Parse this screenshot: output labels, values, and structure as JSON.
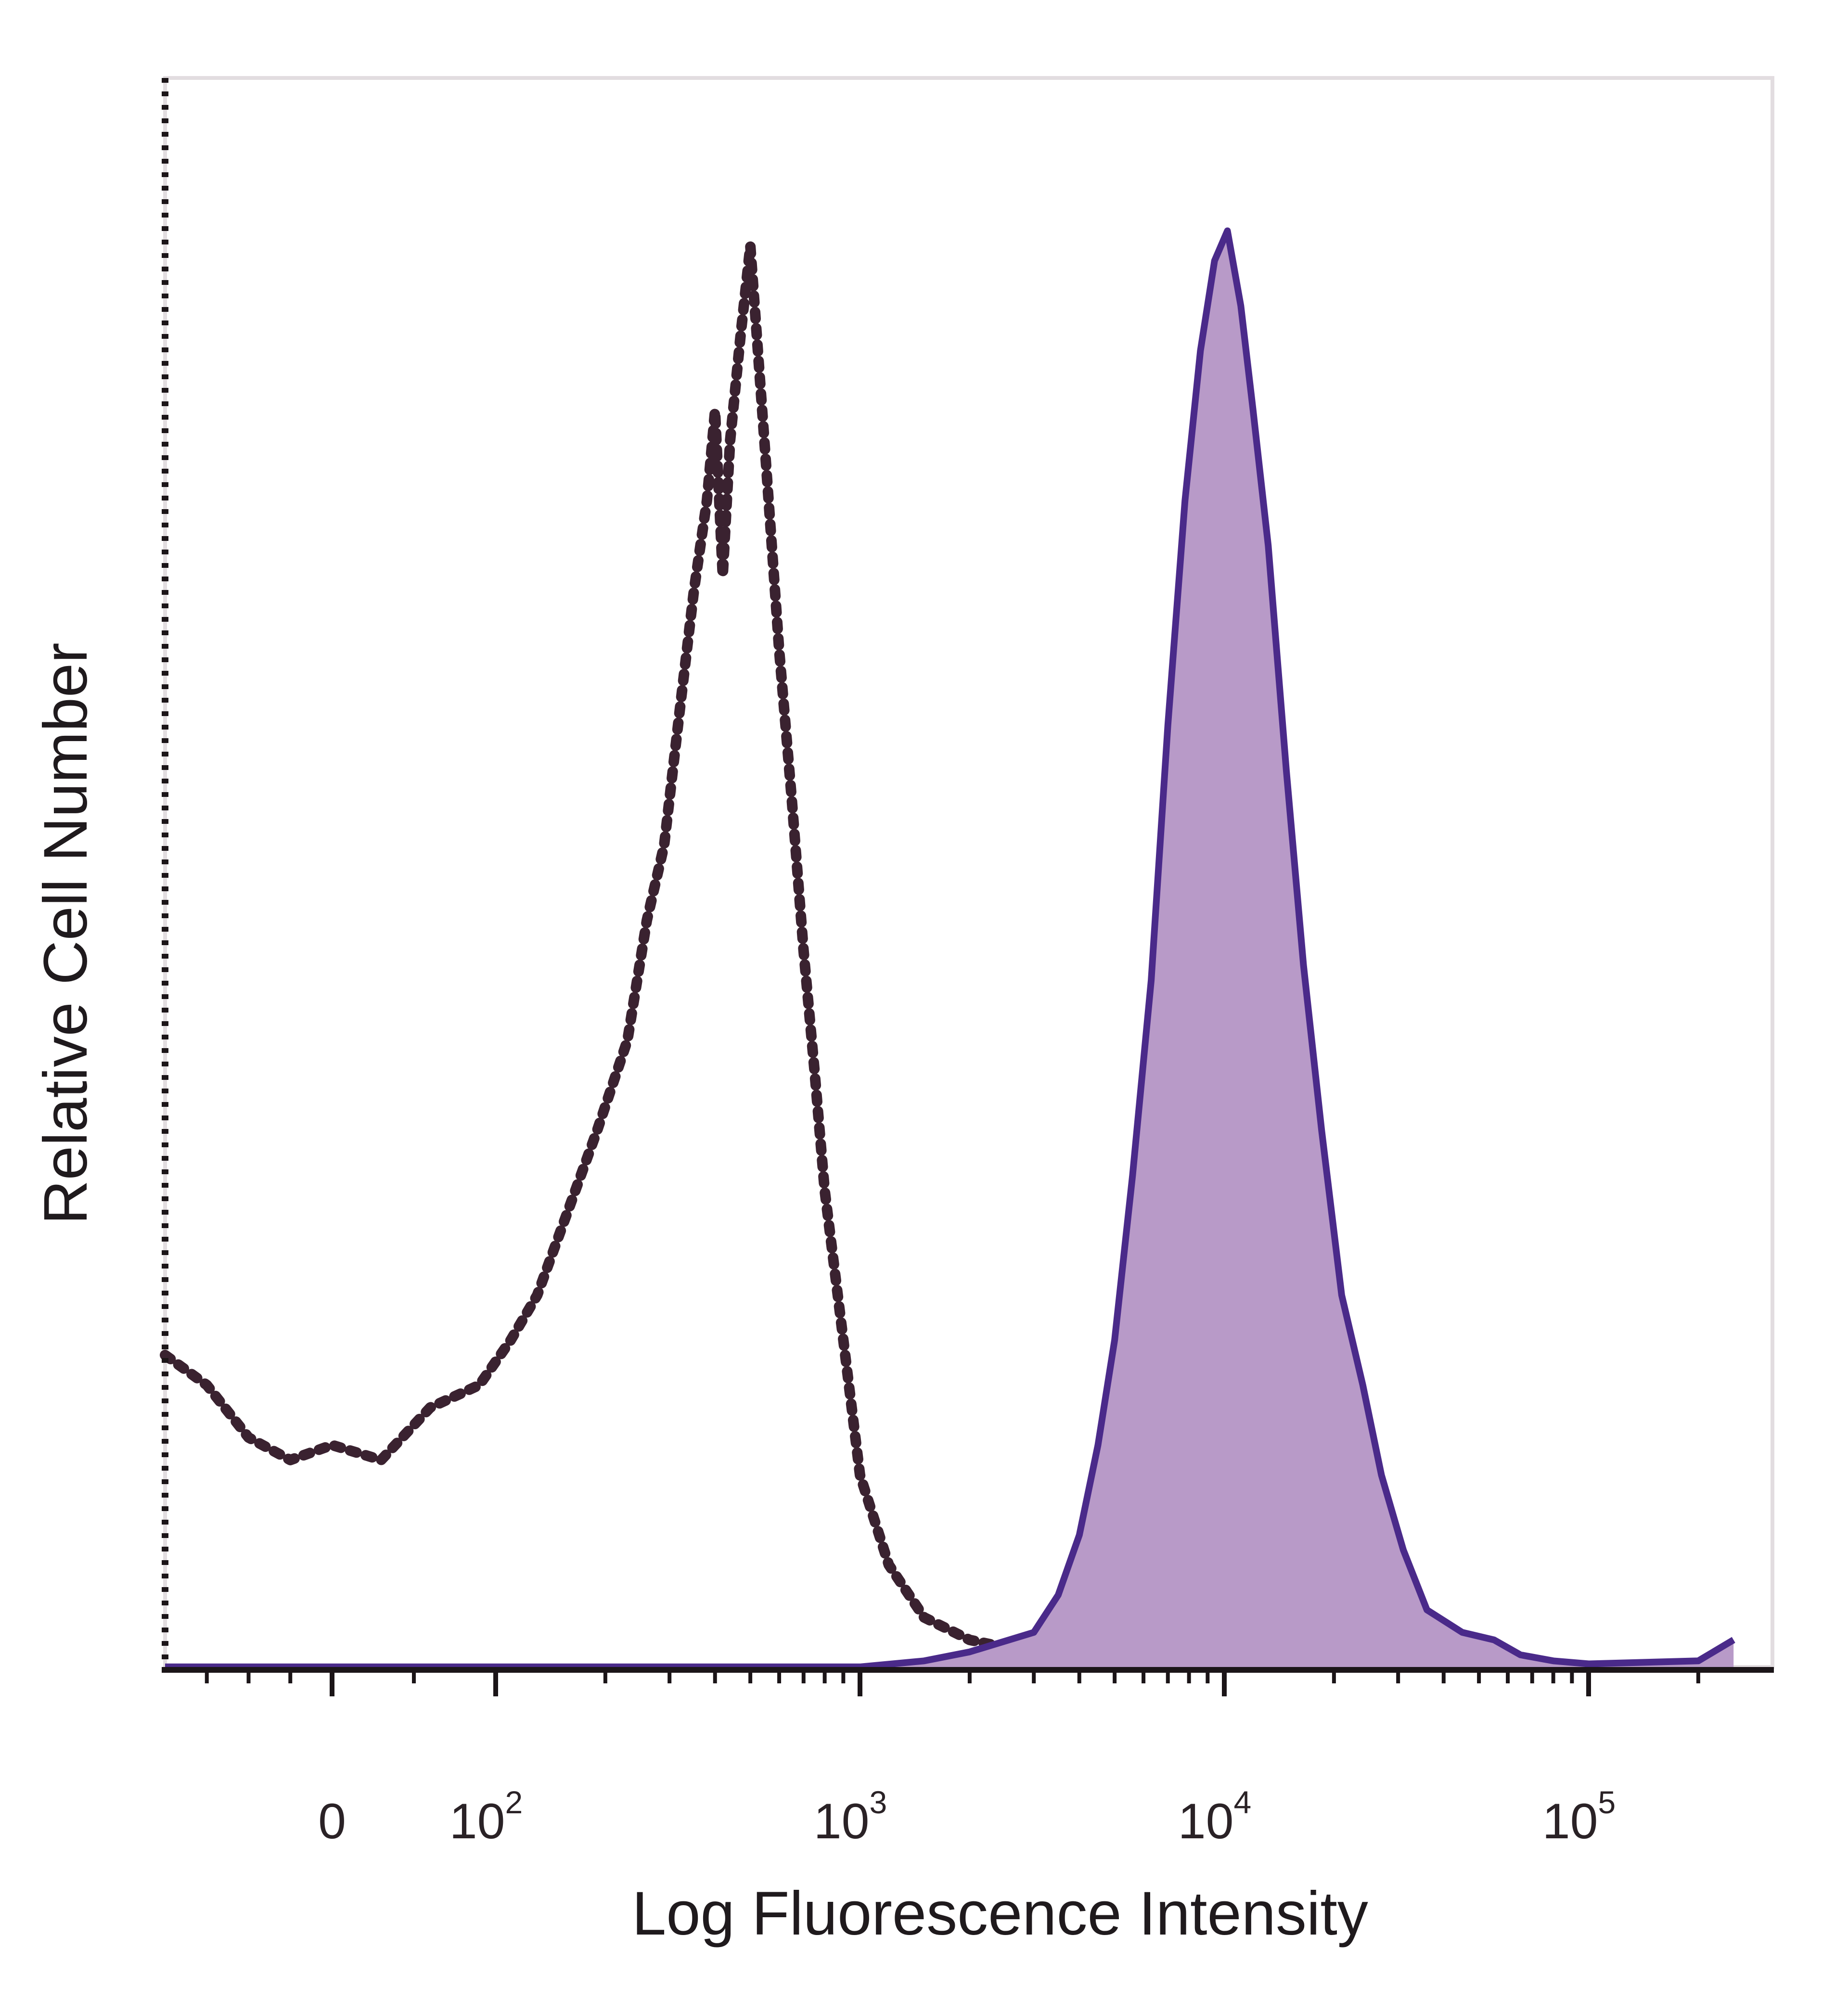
{
  "chart_data": {
    "type": "area",
    "title": "",
    "xlabel": "Log Fluorescence Intensity",
    "ylabel": "Relative Cell Number",
    "x_scale": "biexponential (log above 10^2, linear near 0)",
    "x_ticks": [
      {
        "value": 0,
        "base": "0",
        "exp": ""
      },
      {
        "value": 100,
        "base": "10",
        "exp": "2"
      },
      {
        "value": 1000,
        "base": "10",
        "exp": "3"
      },
      {
        "value": 10000,
        "base": "10",
        "exp": "4"
      },
      {
        "value": 100000,
        "base": "10",
        "exp": "5"
      }
    ],
    "xlim": [
      -400,
      250000
    ],
    "ylim": [
      0,
      100
    ],
    "grid": false,
    "series": [
      {
        "name": "",
        "style": "dotted",
        "color": "#3a2230",
        "fill": false,
        "points": [
          [
            -400,
            21
          ],
          [
            -300,
            19
          ],
          [
            -200,
            15.5
          ],
          [
            -100,
            14
          ],
          [
            0,
            15
          ],
          [
            30,
            14
          ],
          [
            60,
            17.5
          ],
          [
            90,
            19
          ],
          [
            110,
            22
          ],
          [
            130,
            25
          ],
          [
            160,
            31
          ],
          [
            190,
            36
          ],
          [
            230,
            42
          ],
          [
            260,
            50
          ],
          [
            290,
            55
          ],
          [
            320,
            64
          ],
          [
            350,
            72
          ],
          [
            380,
            78
          ],
          [
            400,
            84
          ],
          [
            420,
            73
          ],
          [
            440,
            82
          ],
          [
            470,
            89
          ],
          [
            500,
            95
          ],
          [
            550,
            81
          ],
          [
            600,
            68
          ],
          [
            650,
            58
          ],
          [
            700,
            48
          ],
          [
            750,
            40
          ],
          [
            800,
            32
          ],
          [
            900,
            22
          ],
          [
            1000,
            13
          ],
          [
            1200,
            7
          ],
          [
            1500,
            3.5
          ],
          [
            2000,
            2
          ],
          [
            2500,
            1.5
          ],
          [
            3000,
            1.3
          ],
          [
            4000,
            1
          ],
          [
            6000,
            0.5
          ],
          [
            10000,
            0.3
          ],
          [
            100000,
            0.2
          ],
          [
            250000,
            0.2
          ]
        ]
      },
      {
        "name": "",
        "style": "solid",
        "color": "#4a2a8a",
        "fill": true,
        "fill_color": "#b89ac8",
        "points": [
          [
            -400,
            0.2
          ],
          [
            1000,
            0.2
          ],
          [
            1500,
            0.6
          ],
          [
            2000,
            1.2
          ],
          [
            3000,
            2.5
          ],
          [
            3500,
            5
          ],
          [
            4000,
            9
          ],
          [
            4500,
            15
          ],
          [
            5000,
            22
          ],
          [
            5600,
            33
          ],
          [
            6300,
            46
          ],
          [
            7000,
            63
          ],
          [
            7800,
            78
          ],
          [
            8600,
            88
          ],
          [
            9400,
            94
          ],
          [
            10200,
            96
          ],
          [
            11100,
            91
          ],
          [
            12000,
            84
          ],
          [
            13200,
            75
          ],
          [
            14800,
            60
          ],
          [
            16500,
            47
          ],
          [
            18500,
            36
          ],
          [
            21000,
            25
          ],
          [
            24000,
            19
          ],
          [
            27000,
            13
          ],
          [
            31000,
            8
          ],
          [
            36000,
            4
          ],
          [
            45000,
            2.5
          ],
          [
            55000,
            2
          ],
          [
            65000,
            1
          ],
          [
            80000,
            0.6
          ],
          [
            100000,
            0.4
          ],
          [
            200000,
            0.6
          ],
          [
            250000,
            2
          ]
        ]
      }
    ]
  }
}
